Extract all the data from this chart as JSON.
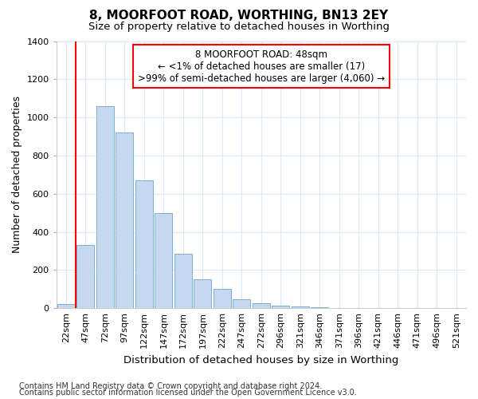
{
  "title": "8, MOORFOOT ROAD, WORTHING, BN13 2EY",
  "subtitle": "Size of property relative to detached houses in Worthing",
  "xlabel": "Distribution of detached houses by size in Worthing",
  "ylabel": "Number of detached properties",
  "categories": [
    "22sqm",
    "47sqm",
    "72sqm",
    "97sqm",
    "122sqm",
    "147sqm",
    "172sqm",
    "197sqm",
    "222sqm",
    "247sqm",
    "272sqm",
    "296sqm",
    "321sqm",
    "346sqm",
    "371sqm",
    "396sqm",
    "421sqm",
    "446sqm",
    "471sqm",
    "496sqm",
    "521sqm"
  ],
  "values": [
    20,
    330,
    1060,
    920,
    670,
    500,
    285,
    150,
    100,
    45,
    25,
    15,
    10,
    5,
    2,
    2,
    1,
    0,
    0,
    0,
    0
  ],
  "bar_color": "#c5d8f0",
  "bar_edge_color": "#7bafd4",
  "ylim": [
    0,
    1400
  ],
  "yticks": [
    0,
    200,
    400,
    600,
    800,
    1000,
    1200,
    1400
  ],
  "vline_index": 1,
  "annotation_title": "8 MOORFOOT ROAD: 48sqm",
  "annotation_line1": "← <1% of detached houses are smaller (17)",
  "annotation_line2": ">99% of semi-detached houses are larger (4,060) →",
  "footer1": "Contains HM Land Registry data © Crown copyright and database right 2024.",
  "footer2": "Contains public sector information licensed under the Open Government Licence v3.0.",
  "bg_color": "#ffffff",
  "plot_bg_color": "#ffffff",
  "grid_color": "#dce8f5",
  "title_fontsize": 11,
  "subtitle_fontsize": 9.5,
  "ylabel_fontsize": 9,
  "xlabel_fontsize": 9.5,
  "tick_fontsize": 8,
  "annotation_fontsize": 8.5,
  "footer_fontsize": 7
}
